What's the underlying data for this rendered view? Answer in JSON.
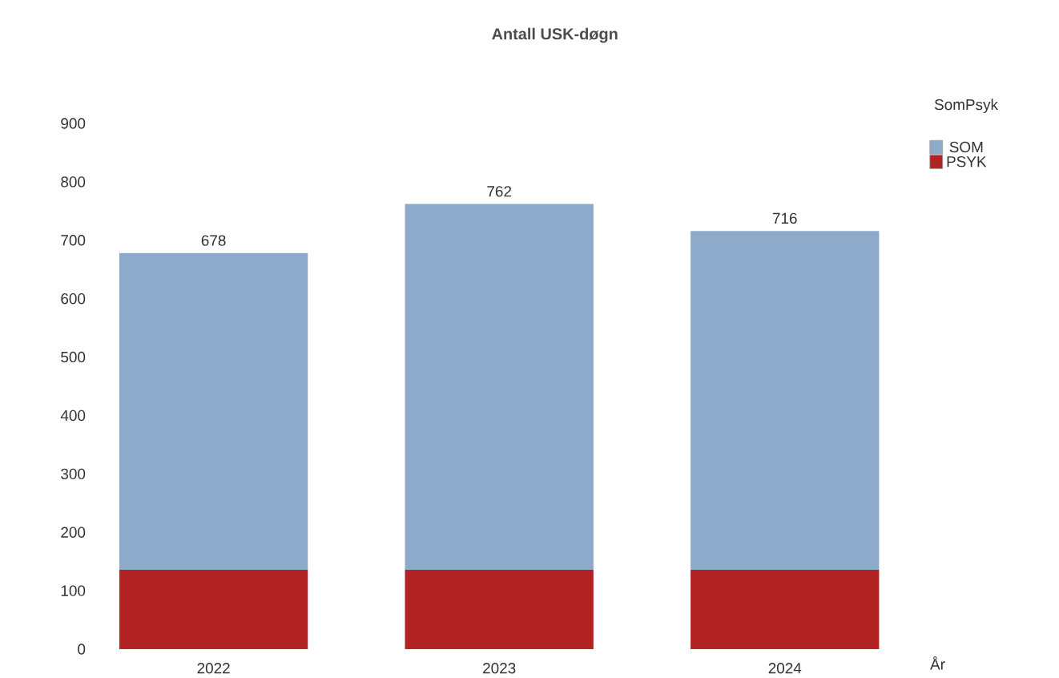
{
  "chart_data": {
    "type": "bar",
    "title": "Antall USK-døgn",
    "xlabel": "År",
    "legend_title": "SomPsyk",
    "categories": [
      "2022",
      "2023",
      "2024"
    ],
    "series": [
      {
        "name": "PSYK",
        "color": "#b22424",
        "values": [
          136,
          136,
          136
        ]
      },
      {
        "name": "SOM",
        "color": "#8eaacb",
        "values": [
          542,
          626,
          580
        ]
      }
    ],
    "stacked": true,
    "totals": [
      "678",
      "762",
      "716"
    ],
    "ylim": [
      0,
      900
    ],
    "yticks": [
      0,
      100,
      200,
      300,
      400,
      500,
      600,
      700,
      800,
      900
    ],
    "legend": "top right"
  }
}
